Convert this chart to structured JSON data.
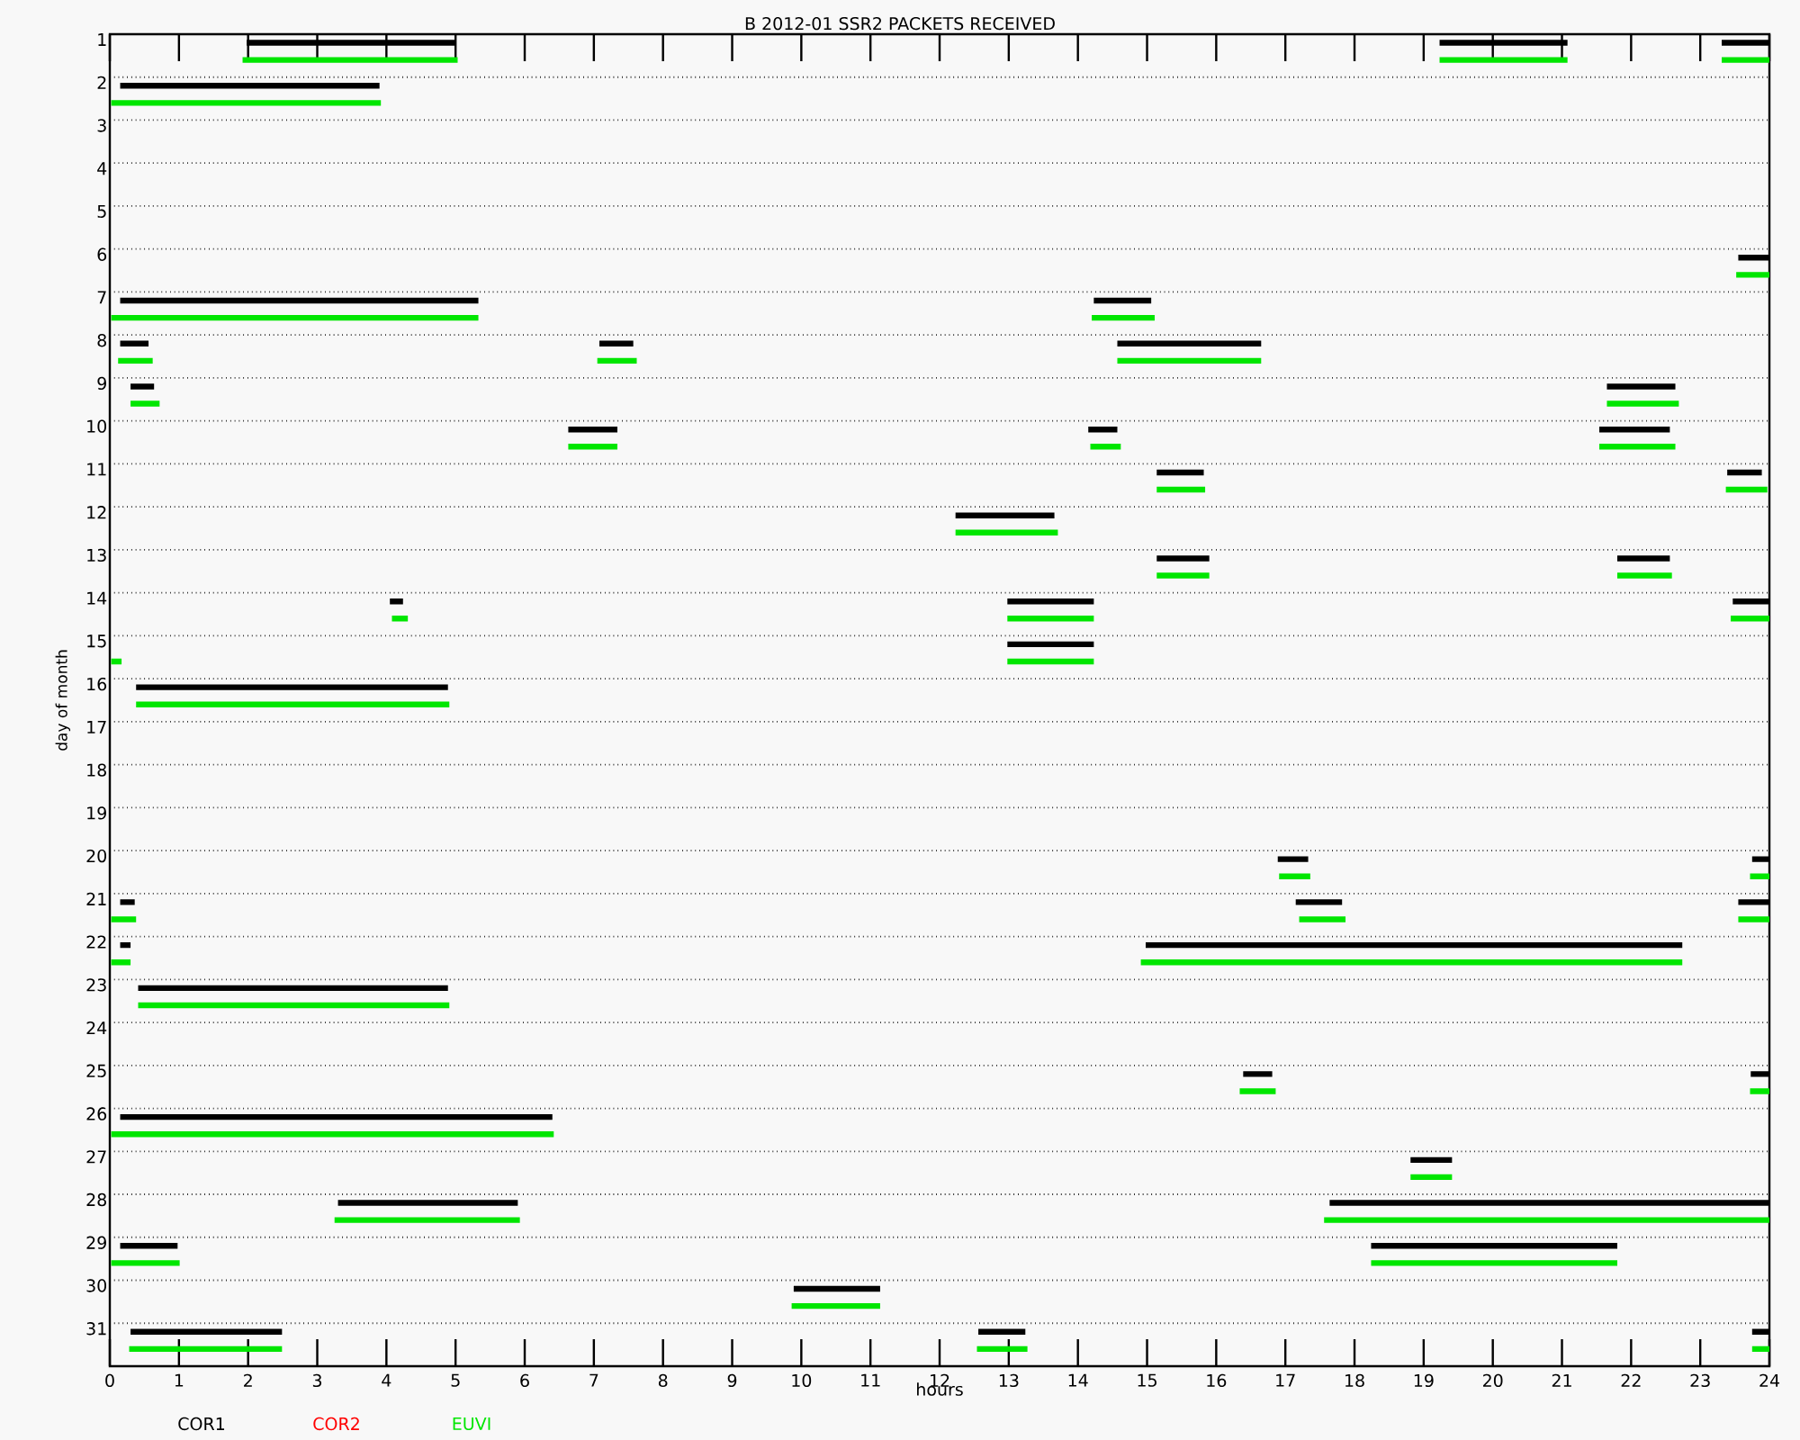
{
  "chart_data": {
    "type": "line",
    "title": "B  2012-01 SSR2 PACKETS RECEIVED",
    "xlabel": "hours",
    "ylabel": "day of month",
    "xlim": [
      0,
      24
    ],
    "xticks": [
      0,
      1,
      2,
      3,
      4,
      5,
      6,
      7,
      8,
      9,
      10,
      11,
      12,
      13,
      14,
      15,
      16,
      17,
      18,
      19,
      20,
      21,
      22,
      23,
      24
    ],
    "ylim": [
      32,
      1
    ],
    "yticks": [
      1,
      2,
      3,
      4,
      5,
      6,
      7,
      8,
      9,
      10,
      11,
      12,
      13,
      14,
      15,
      16,
      17,
      18,
      19,
      20,
      21,
      22,
      23,
      24,
      25,
      26,
      27,
      28,
      29,
      30,
      31
    ],
    "grid": "y",
    "legend": "bottom",
    "marker": "none",
    "series": [
      {
        "name": "COR1",
        "color": "#000000",
        "x": [
          1.98,
          5.0,
          null,
          19.23,
          21.08,
          null,
          23.31,
          24
        ],
        "values": [
          1.2,
          1.2,
          null,
          1.2,
          1.2,
          null,
          1.2,
          1.2
        ]
      },
      {
        "name": "COR2",
        "color": "#ff0000"
      },
      {
        "name": "EUVI",
        "color": "#00e600",
        "x": [
          1.92,
          5.03,
          null,
          19.23,
          21.08,
          null,
          23.31,
          24
        ],
        "values": [
          1.6,
          1.6,
          null,
          1.6,
          1.6,
          null,
          1.6,
          1.6
        ]
      },
      {
        "color": "#000000",
        "x": [
          0.15,
          3.9
        ],
        "values": [
          2.2,
          2.2
        ]
      },
      {
        "color": "#00e600",
        "x": [
          0.02,
          3.92
        ],
        "values": [
          2.6,
          2.6
        ]
      },
      {
        "color": "#000000",
        "x": [
          23.55,
          24
        ],
        "values": [
          6.2,
          6.2
        ]
      },
      {
        "color": "#00e600",
        "x": [
          23.52,
          24
        ],
        "values": [
          6.6,
          6.6
        ]
      },
      {
        "color": "#000000",
        "x": [
          0.15,
          5.33,
          null,
          14.23,
          15.06
        ],
        "values": [
          7.2,
          7.2,
          null,
          7.2,
          7.2
        ]
      },
      {
        "color": "#00e600",
        "x": [
          0.02,
          5.33,
          null,
          14.2,
          15.11
        ],
        "values": [
          7.6,
          7.6,
          null,
          7.6,
          7.6
        ]
      },
      {
        "color": "#000000",
        "x": [
          0.15,
          0.56,
          null,
          7.08,
          7.57,
          null,
          14.57,
          16.65
        ],
        "values": [
          8.2,
          8.2,
          null,
          8.2,
          8.2,
          null,
          8.2,
          8.2
        ]
      },
      {
        "color": "#00e600",
        "x": [
          0.12,
          0.62,
          null,
          7.05,
          7.62,
          null,
          14.57,
          16.65
        ],
        "values": [
          8.6,
          8.6,
          null,
          8.6,
          8.6,
          null,
          8.6,
          8.6
        ]
      },
      {
        "color": "#000000",
        "x": [
          0.3,
          0.64,
          null,
          21.65,
          22.64
        ],
        "values": [
          9.2,
          9.2,
          null,
          9.2,
          9.2
        ]
      },
      {
        "color": "#00e600",
        "x": [
          0.3,
          0.72,
          null,
          21.65,
          22.69
        ],
        "values": [
          9.6,
          9.6,
          null,
          9.6,
          9.6
        ]
      },
      {
        "color": "#000000",
        "x": [
          6.63,
          7.34,
          null,
          14.15,
          14.57,
          null,
          21.54,
          22.56
        ],
        "values": [
          10.2,
          10.2,
          null,
          10.2,
          10.2,
          null,
          10.2,
          10.2
        ]
      },
      {
        "color": "#00e600",
        "x": [
          6.63,
          7.34,
          null,
          14.18,
          14.62,
          null,
          21.54,
          22.64
        ],
        "values": [
          10.6,
          10.6,
          null,
          10.6,
          10.6,
          null,
          10.6,
          10.6
        ]
      },
      {
        "color": "#000000",
        "x": [
          15.14,
          15.82,
          null,
          23.39,
          23.89
        ],
        "values": [
          11.2,
          11.2,
          null,
          11.2,
          11.2
        ]
      },
      {
        "color": "#00e600",
        "x": [
          15.14,
          15.84,
          null,
          23.37,
          23.97
        ],
        "values": [
          11.6,
          11.6,
          null,
          11.6,
          11.6
        ]
      },
      {
        "color": "#000000",
        "x": [
          12.23,
          13.66
        ],
        "values": [
          12.2,
          12.2
        ]
      },
      {
        "color": "#00e600",
        "x": [
          12.23,
          13.71
        ],
        "values": [
          12.6,
          12.6
        ]
      },
      {
        "color": "#000000",
        "x": [
          15.14,
          15.9,
          null,
          21.8,
          22.56
        ],
        "values": [
          13.2,
          13.2,
          null,
          13.2,
          13.2
        ]
      },
      {
        "color": "#00e600",
        "x": [
          15.14,
          15.9,
          null,
          21.8,
          22.59
        ],
        "values": [
          13.6,
          13.6,
          null,
          13.6,
          13.6
        ]
      },
      {
        "color": "#000000",
        "x": [
          4.05,
          4.24,
          null,
          12.98,
          14.23,
          null,
          23.47,
          24
        ],
        "values": [
          14.2,
          14.2,
          null,
          14.2,
          14.2,
          null,
          14.2,
          14.2
        ]
      },
      {
        "color": "#00e600",
        "x": [
          4.08,
          4.31,
          null,
          12.98,
          14.23,
          null,
          23.44,
          24
        ],
        "values": [
          14.6,
          14.6,
          null,
          14.6,
          14.6,
          null,
          14.6,
          14.6
        ]
      },
      {
        "color": "#000000",
        "x": [
          12.98,
          14.23
        ],
        "values": [
          15.2,
          15.2
        ]
      },
      {
        "color": "#00e600",
        "x": [
          0.02,
          0.17,
          null,
          12.98,
          14.23
        ],
        "values": [
          15.6,
          15.6,
          null,
          15.6,
          15.6
        ]
      },
      {
        "color": "#000000",
        "x": [
          0.38,
          4.89
        ],
        "values": [
          16.2,
          16.2
        ]
      },
      {
        "color": "#00e600",
        "x": [
          0.38,
          4.91
        ],
        "values": [
          16.6,
          16.6
        ]
      },
      {
        "color": "#000000",
        "x": [
          16.89,
          17.33,
          null,
          23.75,
          24
        ],
        "values": [
          20.2,
          20.2,
          null,
          20.2,
          20.2
        ]
      },
      {
        "color": "#00e600",
        "x": [
          16.91,
          17.36,
          null,
          23.72,
          24
        ],
        "values": [
          20.6,
          20.6,
          null,
          20.6,
          20.6
        ]
      },
      {
        "color": "#000000",
        "x": [
          0.15,
          0.36,
          null,
          17.15,
          17.82,
          null,
          23.55,
          24
        ],
        "values": [
          21.2,
          21.2,
          null,
          21.2,
          21.2,
          null,
          21.2,
          21.2
        ]
      },
      {
        "color": "#00e600",
        "x": [
          0.02,
          0.38,
          null,
          17.2,
          17.87,
          null,
          23.55,
          24
        ],
        "values": [
          21.6,
          21.6,
          null,
          21.6,
          21.6,
          null,
          21.6,
          21.6
        ]
      },
      {
        "color": "#000000",
        "x": [
          0.15,
          0.3,
          null,
          14.98,
          22.74
        ],
        "values": [
          22.2,
          22.2,
          null,
          22.2,
          22.2
        ]
      },
      {
        "color": "#00e600",
        "x": [
          0.02,
          0.3,
          null,
          14.91,
          22.74
        ],
        "values": [
          22.6,
          22.6,
          null,
          22.6,
          22.6
        ]
      },
      {
        "color": "#000000",
        "x": [
          0.41,
          4.89
        ],
        "values": [
          23.2,
          23.2
        ]
      },
      {
        "color": "#00e600",
        "x": [
          0.41,
          4.91
        ],
        "values": [
          23.6,
          23.6
        ]
      },
      {
        "color": "#000000",
        "x": [
          16.39,
          16.81,
          null,
          23.73,
          24
        ],
        "values": [
          25.2,
          25.2,
          null,
          25.2,
          25.2
        ]
      },
      {
        "color": "#00e600",
        "x": [
          16.34,
          16.86,
          null,
          23.72,
          24
        ],
        "values": [
          25.6,
          25.6,
          null,
          25.6,
          25.6
        ]
      },
      {
        "color": "#000000",
        "x": [
          0.15,
          6.4
        ],
        "values": [
          26.2,
          26.2
        ]
      },
      {
        "color": "#00e600",
        "x": [
          0.02,
          6.42
        ],
        "values": [
          26.6,
          26.6
        ]
      },
      {
        "color": "#000000",
        "x": [
          18.81,
          19.41
        ],
        "values": [
          27.2,
          27.2
        ]
      },
      {
        "color": "#00e600",
        "x": [
          18.81,
          19.41
        ],
        "values": [
          27.6,
          27.6
        ]
      },
      {
        "color": "#000000",
        "x": [
          3.3,
          5.9,
          null,
          17.64,
          24
        ],
        "values": [
          28.2,
          28.2,
          null,
          28.2,
          28.2
        ]
      },
      {
        "color": "#00e600",
        "x": [
          3.25,
          5.93,
          null,
          17.56,
          24
        ],
        "values": [
          28.6,
          28.6,
          null,
          28.6,
          28.6
        ]
      },
      {
        "color": "#000000",
        "x": [
          0.15,
          0.98,
          null,
          18.24,
          21.8
        ],
        "values": [
          29.2,
          29.2,
          null,
          29.2,
          29.2
        ]
      },
      {
        "color": "#00e600",
        "x": [
          0.02,
          1.01,
          null,
          18.24,
          21.8
        ],
        "values": [
          29.6,
          29.6,
          null,
          29.6,
          29.6
        ]
      },
      {
        "color": "#000000",
        "x": [
          9.89,
          11.14
        ],
        "values": [
          30.2,
          30.2
        ]
      },
      {
        "color": "#00e600",
        "x": [
          9.86,
          11.14
        ],
        "values": [
          30.6,
          30.6
        ]
      },
      {
        "color": "#000000",
        "x": [
          0.3,
          2.49,
          null,
          12.56,
          13.24,
          null,
          23.75,
          24
        ],
        "values": [
          31.2,
          31.2,
          null,
          31.2,
          31.2,
          null,
          31.2,
          31.2
        ]
      },
      {
        "color": "#00e600",
        "x": [
          0.28,
          2.49,
          null,
          12.54,
          13.27,
          null,
          23.75,
          24
        ],
        "values": [
          31.6,
          31.6,
          null,
          31.6,
          31.6,
          null,
          31.6,
          31.6
        ]
      }
    ]
  }
}
